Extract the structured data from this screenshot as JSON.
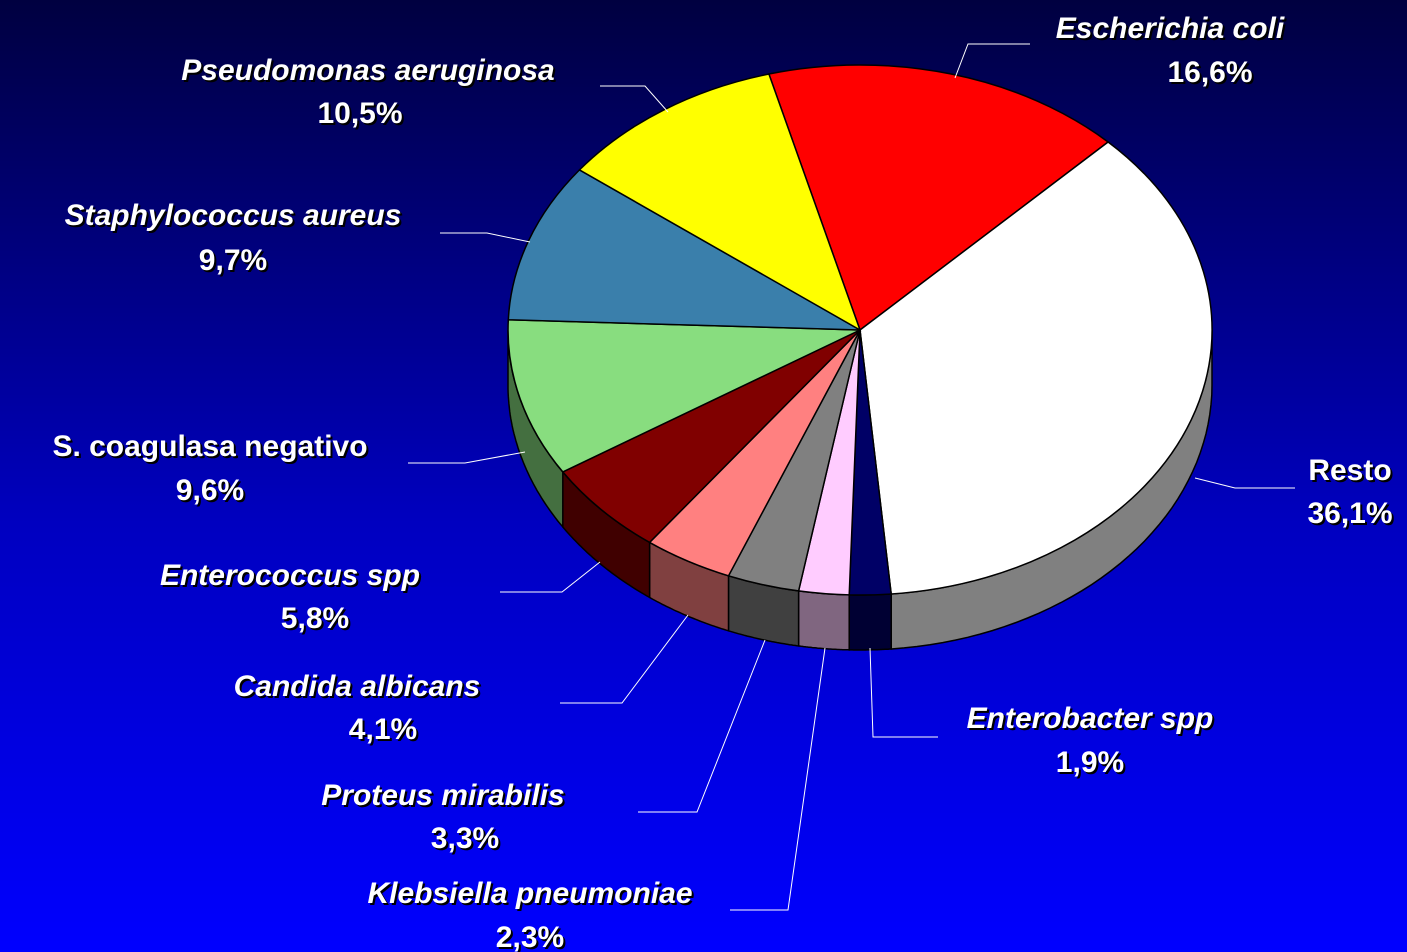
{
  "chart_data": {
    "type": "pie",
    "categories": [
      "Escherichia coli",
      "Resto",
      "Enterobacter spp",
      "Klebsiella pneumoniae",
      "Proteus mirabilis",
      "Candida albicans",
      "Enterococcus spp",
      "S. coagulasa negativo",
      "Staphylococcus aureus",
      "Pseudomonas aeruginosa"
    ],
    "values": [
      16.6,
      36.1,
      1.9,
      2.3,
      3.3,
      4.1,
      5.8,
      9.6,
      9.7,
      10.5
    ],
    "value_labels": [
      "16,6%",
      "36,1%",
      "1,9%",
      "2,3%",
      "3,3%",
      "4,1%",
      "5,8%",
      "9,6%",
      "9,7%",
      "10,5%"
    ],
    "colors": [
      "#ff0000",
      "#ffffff",
      "#000066",
      "#ffccff",
      "#808080",
      "#ff8080",
      "#800000",
      "#88dd7f",
      "#3a7fab",
      "#ffff00"
    ],
    "italic": [
      true,
      false,
      true,
      true,
      true,
      true,
      true,
      false,
      true,
      true
    ]
  }
}
